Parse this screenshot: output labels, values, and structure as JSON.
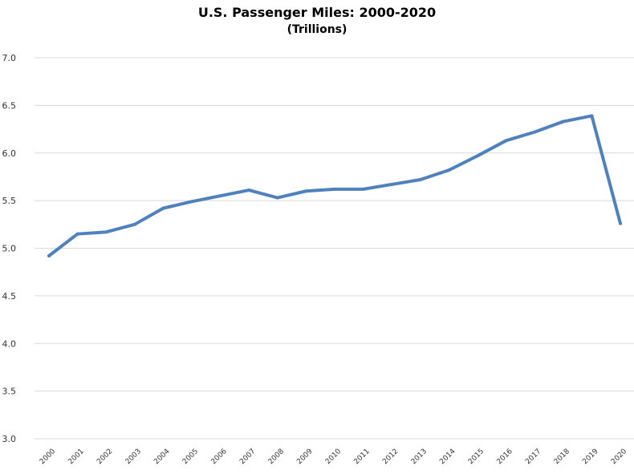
{
  "chart_data": {
    "type": "line",
    "title": "U.S. Passenger Miles: 2000-2020",
    "subtitle": "(Trillions)",
    "xlabel": "",
    "ylabel": "",
    "ylim": [
      3.0,
      7.0
    ],
    "yticks": [
      "3.0",
      "3.5",
      "4.0",
      "4.5",
      "5.0",
      "5.5",
      "6.0",
      "6.5",
      "7.0"
    ],
    "grid": true,
    "categories": [
      "2000",
      "2001",
      "2002",
      "2003",
      "2004",
      "2005",
      "2006",
      "2007",
      "2008",
      "2009",
      "2010",
      "2011",
      "2012",
      "2013",
      "2014",
      "2015",
      "2016",
      "2017",
      "2018",
      "2019",
      "2020"
    ],
    "series": [
      {
        "values": [
          4.92,
          5.15,
          5.17,
          5.25,
          5.42,
          5.49,
          5.55,
          5.61,
          5.53,
          5.6,
          5.62,
          5.62,
          5.67,
          5.72,
          5.82,
          5.97,
          6.13,
          6.22,
          6.33,
          6.39,
          5.26
        ],
        "color": "#4f81bd"
      }
    ]
  }
}
